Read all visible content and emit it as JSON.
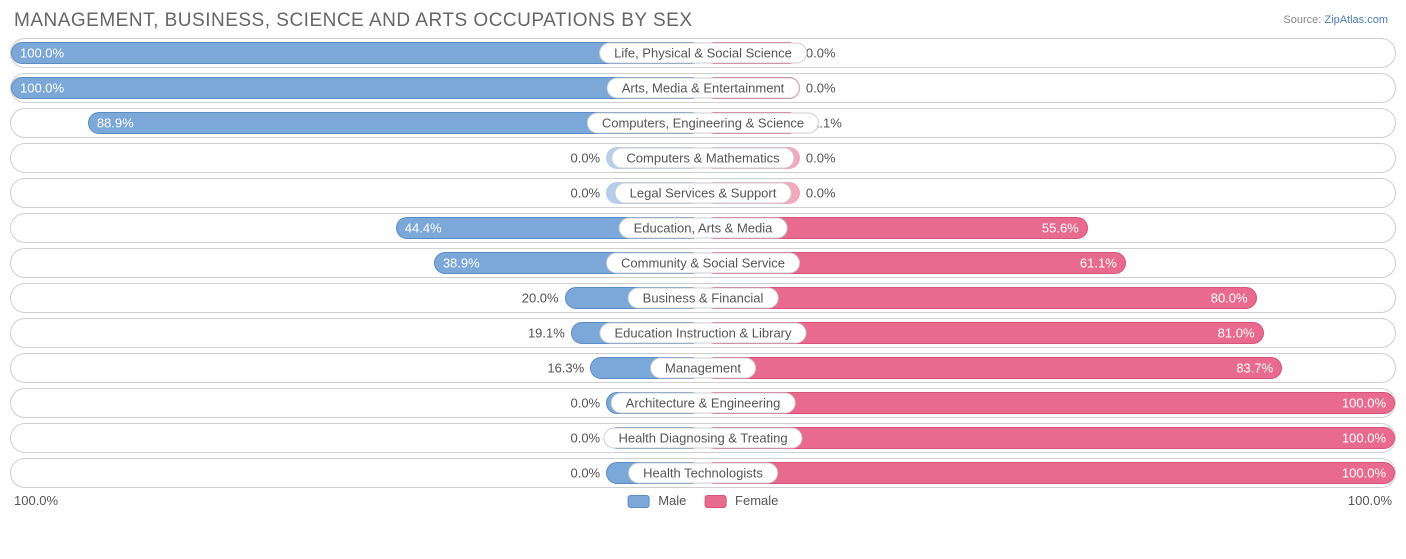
{
  "title": "MANAGEMENT, BUSINESS, SCIENCE AND ARTS OCCUPATIONS BY SEX",
  "source_label": "Source:",
  "source_name": "ZipAtlas.com",
  "axis_left": "100.0%",
  "axis_right": "100.0%",
  "legend": {
    "male": "Male",
    "female": "Female"
  },
  "colors": {
    "male_fill": "#7ba7d9",
    "male_border": "#5a8bc4",
    "female_fill": "#e86a8f",
    "female_border": "#d6537a",
    "pale_male": "#b7cdea",
    "pale_female": "#f2a8bf",
    "row_border": "#cfcfcf",
    "text": "#555555",
    "title": "#666666",
    "background": "#ffffff"
  },
  "min_bar_pct": 14,
  "label_inside_threshold": 30,
  "chart": {
    "type": "diverging-bar",
    "xlim": [
      -100,
      100
    ],
    "rows": [
      {
        "category": "Life, Physical & Social Science",
        "male": 100.0,
        "female": 0.0,
        "pale": false
      },
      {
        "category": "Arts, Media & Entertainment",
        "male": 100.0,
        "female": 0.0,
        "pale": false
      },
      {
        "category": "Computers, Engineering & Science",
        "male": 88.9,
        "female": 11.1,
        "pale": false
      },
      {
        "category": "Computers & Mathematics",
        "male": 0.0,
        "female": 0.0,
        "pale": true
      },
      {
        "category": "Legal Services & Support",
        "male": 0.0,
        "female": 0.0,
        "pale": true
      },
      {
        "category": "Education, Arts & Media",
        "male": 44.4,
        "female": 55.6,
        "pale": false
      },
      {
        "category": "Community & Social Service",
        "male": 38.9,
        "female": 61.1,
        "pale": false
      },
      {
        "category": "Business & Financial",
        "male": 20.0,
        "female": 80.0,
        "pale": false
      },
      {
        "category": "Education Instruction & Library",
        "male": 19.1,
        "female": 81.0,
        "pale": false
      },
      {
        "category": "Management",
        "male": 16.3,
        "female": 83.7,
        "pale": false
      },
      {
        "category": "Architecture & Engineering",
        "male": 0.0,
        "female": 100.0,
        "pale": false
      },
      {
        "category": "Health Diagnosing & Treating",
        "male": 0.0,
        "female": 100.0,
        "pale": false
      },
      {
        "category": "Health Technologists",
        "male": 0.0,
        "female": 100.0,
        "pale": false
      }
    ]
  }
}
